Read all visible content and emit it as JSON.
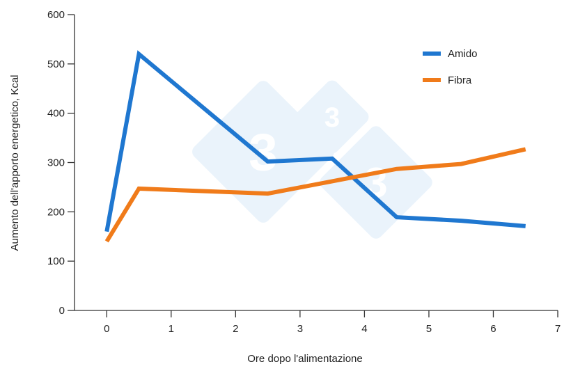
{
  "chart_data": {
    "type": "line",
    "title": "",
    "xlabel": "Ore dopo l'alimentazione",
    "ylabel": "Aumento dell'apporto energetico, Kcal",
    "xlim": [
      -0.5,
      7
    ],
    "ylim": [
      0,
      600
    ],
    "xticks": [
      0,
      1,
      2,
      3,
      4,
      5,
      6,
      7
    ],
    "yticks": [
      0,
      100,
      200,
      300,
      400,
      500,
      600
    ],
    "grid": false,
    "legend_position": "top-right",
    "x": [
      0,
      0.5,
      2.5,
      3.5,
      4.5,
      5.5,
      6.5
    ],
    "series": [
      {
        "name": "Amido",
        "color": "#1f77d0",
        "values": [
          160,
          520,
          302,
          308,
          189,
          182,
          171
        ]
      },
      {
        "name": "Fibra",
        "color": "#f07b1a",
        "values": [
          140,
          247,
          237,
          262,
          287,
          297,
          327
        ]
      }
    ]
  },
  "legend": {
    "items": [
      {
        "label": "Amido",
        "color": "#1f77d0"
      },
      {
        "label": "Fibra",
        "color": "#f07b1a"
      }
    ]
  },
  "axes": {
    "x_title": "Ore dopo l'alimentazione",
    "y_title": "Aumento dell'apporto energetico, Kcal"
  },
  "watermark": {
    "glyph": "3",
    "color": "#eaf3fb"
  }
}
